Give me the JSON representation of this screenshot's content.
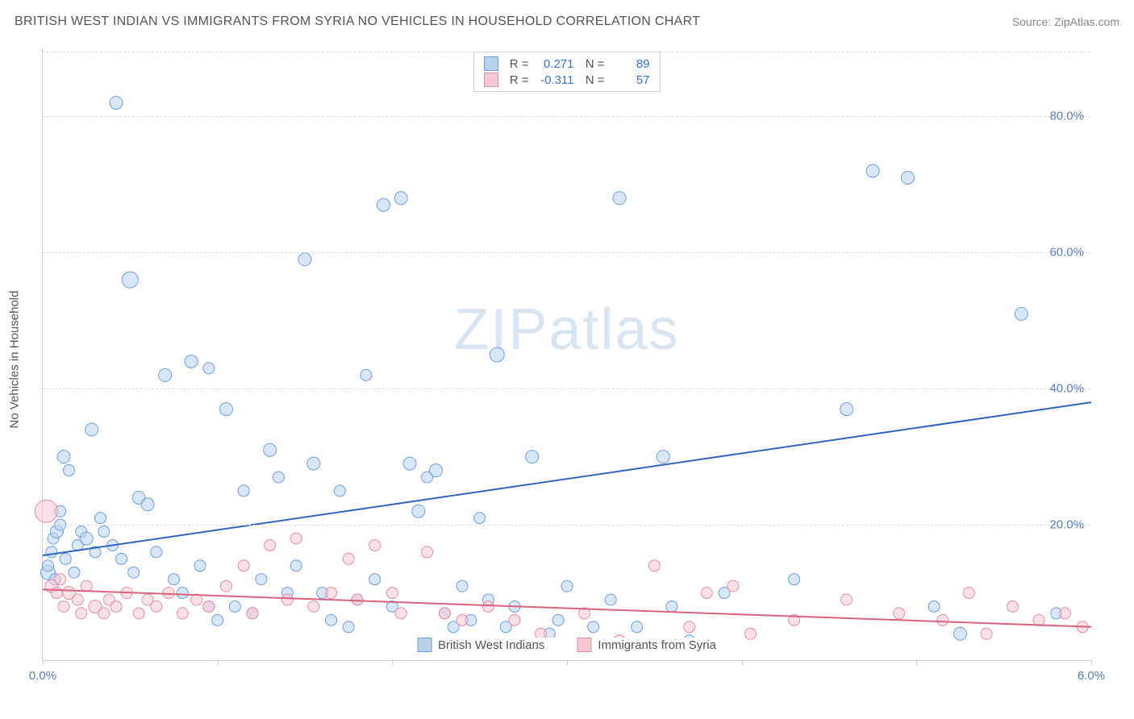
{
  "title": "BRITISH WEST INDIAN VS IMMIGRANTS FROM SYRIA NO VEHICLES IN HOUSEHOLD CORRELATION CHART",
  "source_label": "Source:",
  "source_name": "ZipAtlas.com",
  "ylabel": "No Vehicles in Household",
  "watermark_a": "ZIP",
  "watermark_b": "atlas",
  "chart": {
    "type": "scatter",
    "background_color": "#ffffff",
    "grid_color": "#dddddd",
    "axis_color": "#cccccc",
    "tick_label_color": "#5b7db1",
    "xlim": [
      0.0,
      6.0
    ],
    "ylim": [
      0.0,
      90.0
    ],
    "xticks": [
      0.0,
      1.0,
      2.0,
      3.0,
      4.0,
      5.0,
      6.0
    ],
    "xtick_labels": [
      "0.0%",
      "",
      "",
      "",
      "",
      "",
      "6.0%"
    ],
    "yticks": [
      20.0,
      40.0,
      60.0,
      80.0
    ],
    "ytick_labels": [
      "20.0%",
      "40.0%",
      "60.0%",
      "80.0%"
    ],
    "label_fontsize": 15,
    "title_fontsize": 16
  },
  "series": [
    {
      "name": "British West Indians",
      "color_fill": "#b9d1ec",
      "color_stroke": "#6f9fd8",
      "trend_color": "#2f63c0",
      "fill_opacity": 0.55,
      "R": "0.271",
      "N": "89",
      "trend": {
        "x1": 0.0,
        "y1": 15.5,
        "x2": 6.0,
        "y2": 38.0
      },
      "points": [
        {
          "x": 0.03,
          "y": 13,
          "r": 9
        },
        {
          "x": 0.03,
          "y": 14,
          "r": 7
        },
        {
          "x": 0.05,
          "y": 16,
          "r": 7
        },
        {
          "x": 0.06,
          "y": 18,
          "r": 7
        },
        {
          "x": 0.08,
          "y": 19,
          "r": 8
        },
        {
          "x": 0.1,
          "y": 20,
          "r": 7
        },
        {
          "x": 0.1,
          "y": 22,
          "r": 7
        },
        {
          "x": 0.12,
          "y": 30,
          "r": 8
        },
        {
          "x": 0.15,
          "y": 28,
          "r": 7
        },
        {
          "x": 0.2,
          "y": 17,
          "r": 7
        },
        {
          "x": 0.22,
          "y": 19,
          "r": 7
        },
        {
          "x": 0.25,
          "y": 18,
          "r": 8
        },
        {
          "x": 0.28,
          "y": 34,
          "r": 8
        },
        {
          "x": 0.3,
          "y": 16,
          "r": 7
        },
        {
          "x": 0.35,
          "y": 19,
          "r": 7
        },
        {
          "x": 0.4,
          "y": 17,
          "r": 7
        },
        {
          "x": 0.42,
          "y": 82,
          "r": 8
        },
        {
          "x": 0.5,
          "y": 56,
          "r": 10
        },
        {
          "x": 0.55,
          "y": 24,
          "r": 8
        },
        {
          "x": 0.6,
          "y": 23,
          "r": 8
        },
        {
          "x": 0.7,
          "y": 42,
          "r": 8
        },
        {
          "x": 0.8,
          "y": 10,
          "r": 7
        },
        {
          "x": 0.85,
          "y": 44,
          "r": 8
        },
        {
          "x": 0.95,
          "y": 43,
          "r": 7
        },
        {
          "x": 0.95,
          "y": 8,
          "r": 7
        },
        {
          "x": 1.0,
          "y": 6,
          "r": 7
        },
        {
          "x": 1.05,
          "y": 37,
          "r": 8
        },
        {
          "x": 1.15,
          "y": 25,
          "r": 7
        },
        {
          "x": 1.2,
          "y": 7,
          "r": 7
        },
        {
          "x": 1.3,
          "y": 31,
          "r": 8
        },
        {
          "x": 1.35,
          "y": 27,
          "r": 7
        },
        {
          "x": 1.4,
          "y": 10,
          "r": 7
        },
        {
          "x": 1.5,
          "y": 59,
          "r": 8
        },
        {
          "x": 1.55,
          "y": 29,
          "r": 8
        },
        {
          "x": 1.6,
          "y": 10,
          "r": 7
        },
        {
          "x": 1.7,
          "y": 25,
          "r": 7
        },
        {
          "x": 1.8,
          "y": 9,
          "r": 7
        },
        {
          "x": 1.85,
          "y": 42,
          "r": 7
        },
        {
          "x": 1.95,
          "y": 67,
          "r": 8
        },
        {
          "x": 2.0,
          "y": 8,
          "r": 7
        },
        {
          "x": 2.05,
          "y": 68,
          "r": 8
        },
        {
          "x": 2.1,
          "y": 29,
          "r": 8
        },
        {
          "x": 2.15,
          "y": 22,
          "r": 8
        },
        {
          "x": 2.2,
          "y": 27,
          "r": 7
        },
        {
          "x": 2.25,
          "y": 28,
          "r": 8
        },
        {
          "x": 2.3,
          "y": 7,
          "r": 7
        },
        {
          "x": 2.4,
          "y": 11,
          "r": 7
        },
        {
          "x": 2.45,
          "y": 6,
          "r": 7
        },
        {
          "x": 2.55,
          "y": 9,
          "r": 7
        },
        {
          "x": 2.6,
          "y": 45,
          "r": 9
        },
        {
          "x": 2.65,
          "y": 5,
          "r": 7
        },
        {
          "x": 2.8,
          "y": 30,
          "r": 8
        },
        {
          "x": 2.9,
          "y": 4,
          "r": 7
        },
        {
          "x": 3.0,
          "y": 11,
          "r": 7
        },
        {
          "x": 3.15,
          "y": 5,
          "r": 7
        },
        {
          "x": 3.3,
          "y": 68,
          "r": 8
        },
        {
          "x": 3.4,
          "y": 5,
          "r": 7
        },
        {
          "x": 3.55,
          "y": 30,
          "r": 8
        },
        {
          "x": 3.7,
          "y": 3,
          "r": 7
        },
        {
          "x": 4.6,
          "y": 37,
          "r": 8
        },
        {
          "x": 4.75,
          "y": 72,
          "r": 8
        },
        {
          "x": 4.95,
          "y": 71,
          "r": 8
        },
        {
          "x": 5.25,
          "y": 4,
          "r": 8
        },
        {
          "x": 5.6,
          "y": 51,
          "r": 8
        },
        {
          "x": 0.07,
          "y": 12,
          "r": 7
        },
        {
          "x": 0.13,
          "y": 15,
          "r": 7
        },
        {
          "x": 0.18,
          "y": 13,
          "r": 7
        },
        {
          "x": 0.33,
          "y": 21,
          "r": 7
        },
        {
          "x": 0.45,
          "y": 15,
          "r": 7
        },
        {
          "x": 0.52,
          "y": 13,
          "r": 7
        },
        {
          "x": 0.65,
          "y": 16,
          "r": 7
        },
        {
          "x": 0.75,
          "y": 12,
          "r": 7
        },
        {
          "x": 0.9,
          "y": 14,
          "r": 7
        },
        {
          "x": 1.1,
          "y": 8,
          "r": 7
        },
        {
          "x": 1.25,
          "y": 12,
          "r": 7
        },
        {
          "x": 1.45,
          "y": 14,
          "r": 7
        },
        {
          "x": 1.65,
          "y": 6,
          "r": 7
        },
        {
          "x": 1.75,
          "y": 5,
          "r": 7
        },
        {
          "x": 1.9,
          "y": 12,
          "r": 7
        },
        {
          "x": 2.35,
          "y": 5,
          "r": 7
        },
        {
          "x": 2.5,
          "y": 21,
          "r": 7
        },
        {
          "x": 2.7,
          "y": 8,
          "r": 7
        },
        {
          "x": 2.95,
          "y": 6,
          "r": 7
        },
        {
          "x": 3.25,
          "y": 9,
          "r": 7
        },
        {
          "x": 3.6,
          "y": 8,
          "r": 7
        },
        {
          "x": 3.9,
          "y": 10,
          "r": 7
        },
        {
          "x": 4.3,
          "y": 12,
          "r": 7
        },
        {
          "x": 5.1,
          "y": 8,
          "r": 7
        },
        {
          "x": 5.8,
          "y": 7,
          "r": 7
        }
      ]
    },
    {
      "name": "Immigrants from Syria",
      "color_fill": "#f5c7d3",
      "color_stroke": "#e08fa5",
      "trend_color": "#d8637f",
      "fill_opacity": 0.55,
      "R": "-0.311",
      "N": "57",
      "trend": {
        "x1": 0.0,
        "y1": 10.5,
        "x2": 6.0,
        "y2": 5.0
      },
      "points": [
        {
          "x": 0.02,
          "y": 22,
          "r": 14
        },
        {
          "x": 0.05,
          "y": 11,
          "r": 8
        },
        {
          "x": 0.08,
          "y": 10,
          "r": 7
        },
        {
          "x": 0.1,
          "y": 12,
          "r": 7
        },
        {
          "x": 0.12,
          "y": 8,
          "r": 7
        },
        {
          "x": 0.15,
          "y": 10,
          "r": 8
        },
        {
          "x": 0.2,
          "y": 9,
          "r": 7
        },
        {
          "x": 0.22,
          "y": 7,
          "r": 7
        },
        {
          "x": 0.25,
          "y": 11,
          "r": 7
        },
        {
          "x": 0.3,
          "y": 8,
          "r": 8
        },
        {
          "x": 0.35,
          "y": 7,
          "r": 7
        },
        {
          "x": 0.38,
          "y": 9,
          "r": 7
        },
        {
          "x": 0.42,
          "y": 8,
          "r": 7
        },
        {
          "x": 0.48,
          "y": 10,
          "r": 7
        },
        {
          "x": 0.55,
          "y": 7,
          "r": 7
        },
        {
          "x": 0.6,
          "y": 9,
          "r": 7
        },
        {
          "x": 0.65,
          "y": 8,
          "r": 7
        },
        {
          "x": 0.72,
          "y": 10,
          "r": 7
        },
        {
          "x": 0.8,
          "y": 7,
          "r": 7
        },
        {
          "x": 0.88,
          "y": 9,
          "r": 7
        },
        {
          "x": 0.95,
          "y": 8,
          "r": 7
        },
        {
          "x": 1.05,
          "y": 11,
          "r": 7
        },
        {
          "x": 1.15,
          "y": 14,
          "r": 7
        },
        {
          "x": 1.2,
          "y": 7,
          "r": 7
        },
        {
          "x": 1.3,
          "y": 17,
          "r": 7
        },
        {
          "x": 1.4,
          "y": 9,
          "r": 7
        },
        {
          "x": 1.45,
          "y": 18,
          "r": 7
        },
        {
          "x": 1.55,
          "y": 8,
          "r": 7
        },
        {
          "x": 1.65,
          "y": 10,
          "r": 7
        },
        {
          "x": 1.75,
          "y": 15,
          "r": 7
        },
        {
          "x": 1.8,
          "y": 9,
          "r": 7
        },
        {
          "x": 1.9,
          "y": 17,
          "r": 7
        },
        {
          "x": 2.0,
          "y": 10,
          "r": 7
        },
        {
          "x": 2.05,
          "y": 7,
          "r": 7
        },
        {
          "x": 2.2,
          "y": 16,
          "r": 7
        },
        {
          "x": 2.3,
          "y": 7,
          "r": 7
        },
        {
          "x": 2.4,
          "y": 6,
          "r": 7
        },
        {
          "x": 2.55,
          "y": 8,
          "r": 7
        },
        {
          "x": 2.7,
          "y": 6,
          "r": 7
        },
        {
          "x": 2.85,
          "y": 4,
          "r": 7
        },
        {
          "x": 3.1,
          "y": 7,
          "r": 7
        },
        {
          "x": 3.3,
          "y": 3,
          "r": 7
        },
        {
          "x": 3.5,
          "y": 14,
          "r": 7
        },
        {
          "x": 3.7,
          "y": 5,
          "r": 7
        },
        {
          "x": 3.8,
          "y": 10,
          "r": 7
        },
        {
          "x": 3.95,
          "y": 11,
          "r": 7
        },
        {
          "x": 4.05,
          "y": 4,
          "r": 7
        },
        {
          "x": 4.3,
          "y": 6,
          "r": 7
        },
        {
          "x": 4.6,
          "y": 9,
          "r": 7
        },
        {
          "x": 4.9,
          "y": 7,
          "r": 7
        },
        {
          "x": 5.15,
          "y": 6,
          "r": 7
        },
        {
          "x": 5.3,
          "y": 10,
          "r": 7
        },
        {
          "x": 5.4,
          "y": 4,
          "r": 7
        },
        {
          "x": 5.55,
          "y": 8,
          "r": 7
        },
        {
          "x": 5.7,
          "y": 6,
          "r": 7
        },
        {
          "x": 5.85,
          "y": 7,
          "r": 7
        },
        {
          "x": 5.95,
          "y": 5,
          "r": 7
        }
      ]
    }
  ],
  "legend_bottom": [
    {
      "label": "British West Indians",
      "swatch_fill": "#b9d1ec",
      "swatch_stroke": "#6f9fd8"
    },
    {
      "label": "Immigrants from Syria",
      "swatch_fill": "#f5c7d3",
      "swatch_stroke": "#e08fa5"
    }
  ],
  "stats_labels": {
    "R": "R =",
    "N": "N ="
  }
}
